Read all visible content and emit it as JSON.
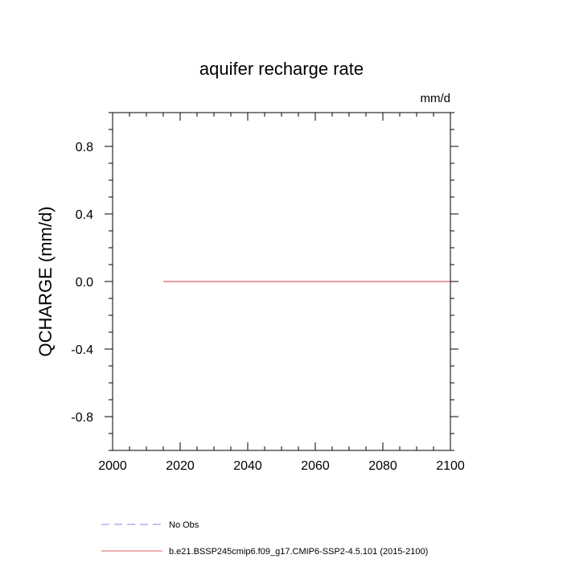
{
  "chart_data": {
    "type": "line",
    "title": "aquifer recharge rate",
    "units_label": "mm/d",
    "ylabel": "QCHARGE  (mm/d)",
    "xlabel": "",
    "xlim": [
      2000,
      2100
    ],
    "ylim": [
      -1.0,
      1.0
    ],
    "x_ticks": [
      2000,
      2020,
      2040,
      2060,
      2080,
      2100
    ],
    "x_tick_labels": [
      "2000",
      "2020",
      "2040",
      "2060",
      "2080",
      "2100"
    ],
    "y_ticks": [
      -0.8,
      -0.4,
      0.0,
      0.4,
      0.8
    ],
    "y_tick_labels": [
      "-0.8",
      "-0.4",
      "0.0",
      "0.4",
      "0.8"
    ],
    "grid": false,
    "legend_position": "bottom",
    "series": [
      {
        "name": "b.e21.BSSP245cmip6.f09_g17.CMIP6-SSP2-4.5.101 (2015-2100)",
        "color": "#e06666",
        "style": "solid",
        "x": [
          2015,
          2030,
          2045,
          2060,
          2075,
          2090,
          2100
        ],
        "y": [
          0,
          0,
          0,
          0,
          0,
          0,
          0
        ]
      }
    ],
    "legend": [
      {
        "label": "No Obs",
        "color": "#8888ee",
        "style": "dashed"
      },
      {
        "label": "b.e21.BSSP245cmip6.f09_g17.CMIP6-SSP2-4.5.101 (2015-2100)",
        "color": "#e06666",
        "style": "solid"
      }
    ]
  }
}
